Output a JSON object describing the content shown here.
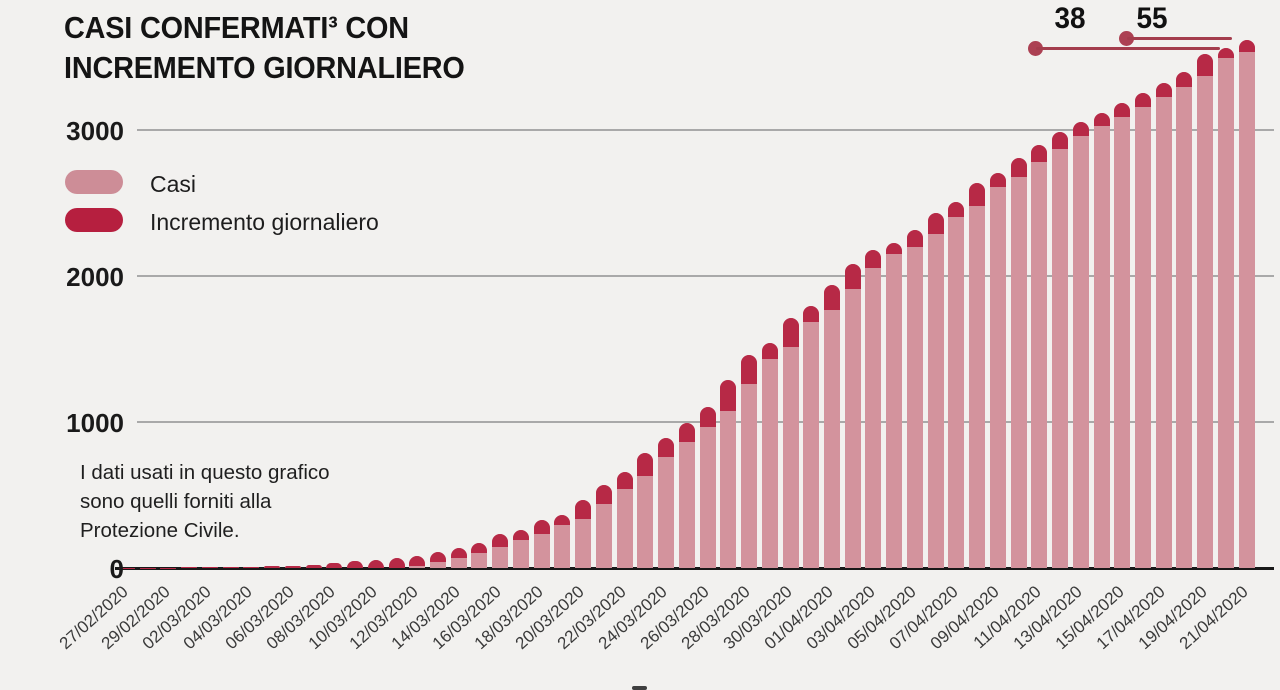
{
  "title": {
    "line1": "CASI CONFERMATI³ CON",
    "line2": "INCREMENTO GIORNALIERO"
  },
  "legend": {
    "items": [
      {
        "label": "Casi",
        "color": "#cd8d97"
      },
      {
        "label": "Incremento giornaliero",
        "color": "#b61f3f"
      }
    ]
  },
  "note": {
    "lines": [
      "I dati usati in questo grafico",
      "sono quelli forniti alla",
      "Protezione Civile."
    ]
  },
  "y_axis": {
    "ticks": [
      "3000",
      "2000",
      "1000",
      "0"
    ]
  },
  "annotations": [
    {
      "label": "38",
      "target_date": "20/04/2020"
    },
    {
      "label": "55",
      "target_date": "21/04/2020"
    }
  ],
  "colors": {
    "background": "#f2f1ef",
    "casi": "#d3939d",
    "incremento": "#b72946",
    "annotation_line": "#a43d4d",
    "gridline": "#a9a9a9"
  },
  "chart_data": {
    "type": "bar",
    "stacked": true,
    "title": "CASI CONFERMATI³ CON INCREMENTO GIORNALIERO",
    "xlabel": "",
    "ylabel": "",
    "ylim": [
      0,
      3700
    ],
    "y_ticks": [
      0,
      1000,
      2000,
      3000
    ],
    "grid": true,
    "legend_position": "upper-left",
    "x": [
      "27/02/2020",
      "28/02/2020",
      "29/02/2020",
      "01/03/2020",
      "02/03/2020",
      "03/03/2020",
      "04/03/2020",
      "05/03/2020",
      "06/03/2020",
      "07/03/2020",
      "08/03/2020",
      "09/03/2020",
      "10/03/2020",
      "11/03/2020",
      "12/03/2020",
      "13/03/2020",
      "14/03/2020",
      "15/03/2020",
      "16/03/2020",
      "17/03/2020",
      "18/03/2020",
      "19/03/2020",
      "20/03/2020",
      "21/03/2020",
      "22/03/2020",
      "23/03/2020",
      "24/03/2020",
      "25/03/2020",
      "26/03/2020",
      "27/03/2020",
      "28/03/2020",
      "29/03/2020",
      "30/03/2020",
      "31/03/2020",
      "01/04/2020",
      "02/04/2020",
      "03/04/2020",
      "04/04/2020",
      "05/04/2020",
      "06/04/2020",
      "07/04/2020",
      "08/04/2020",
      "09/04/2020",
      "10/04/2020",
      "11/04/2020",
      "12/04/2020",
      "13/04/2020",
      "14/04/2020",
      "15/04/2020",
      "16/04/2020",
      "17/04/2020",
      "18/04/2020",
      "19/04/2020",
      "20/04/2020",
      "21/04/2020"
    ],
    "x_tick_labels": [
      "27/02/2020",
      "29/02/2020",
      "02/03/2020",
      "04/03/2020",
      "06/03/2020",
      "08/03/2020",
      "10/03/2020",
      "12/03/2020",
      "14/03/2020",
      "16/03/2020",
      "18/03/2020",
      "20/03/2020",
      "22/03/2020",
      "24/03/2020",
      "26/03/2020",
      "28/03/2020",
      "30/03/2020",
      "01/04/2020",
      "03/04/2020",
      "05/04/2020",
      "07/04/2020",
      "09/04/2020",
      "11/04/2020",
      "13/04/2020",
      "15/04/2020",
      "17/04/2020",
      "19/04/2020",
      "21/04/2020"
    ],
    "series": [
      {
        "name": "Casi",
        "description": "totale casi confermati (altezza totale barra, stima)",
        "values": [
          1,
          2,
          3,
          5,
          6,
          8,
          10,
          12,
          14,
          20,
          34,
          50,
          55,
          68,
          82,
          110,
          137,
          171,
          233,
          260,
          330,
          363,
          466,
          569,
          658,
          788,
          890,
          993,
          1100,
          1290,
          1459,
          1541,
          1712,
          1795,
          1938,
          2082,
          2178,
          2226,
          2315,
          2432,
          2507,
          2637,
          2705,
          2808,
          2897,
          2986,
          3055,
          3116,
          3185,
          3253,
          3319,
          3400,
          3522,
          3560,
          3615
        ]
      },
      {
        "name": "Incremento giornaliero",
        "description": "nuovi casi del giorno (segmento scuro in cima, stima)",
        "values": [
          1,
          1,
          1,
          2,
          1,
          2,
          2,
          2,
          2,
          6,
          14,
          16,
          5,
          13,
          14,
          28,
          27,
          34,
          62,
          27,
          70,
          33,
          103,
          103,
          89,
          130,
          102,
          103,
          107,
          190,
          169,
          82,
          171,
          83,
          143,
          144,
          96,
          48,
          89,
          117,
          75,
          130,
          68,
          103,
          89,
          89,
          69,
          61,
          69,
          68,
          66,
          81,
          122,
          38,
          55
        ]
      }
    ],
    "annotations": [
      {
        "text": "38",
        "x": "20/04/2020"
      },
      {
        "text": "55",
        "x": "21/04/2020"
      }
    ]
  }
}
